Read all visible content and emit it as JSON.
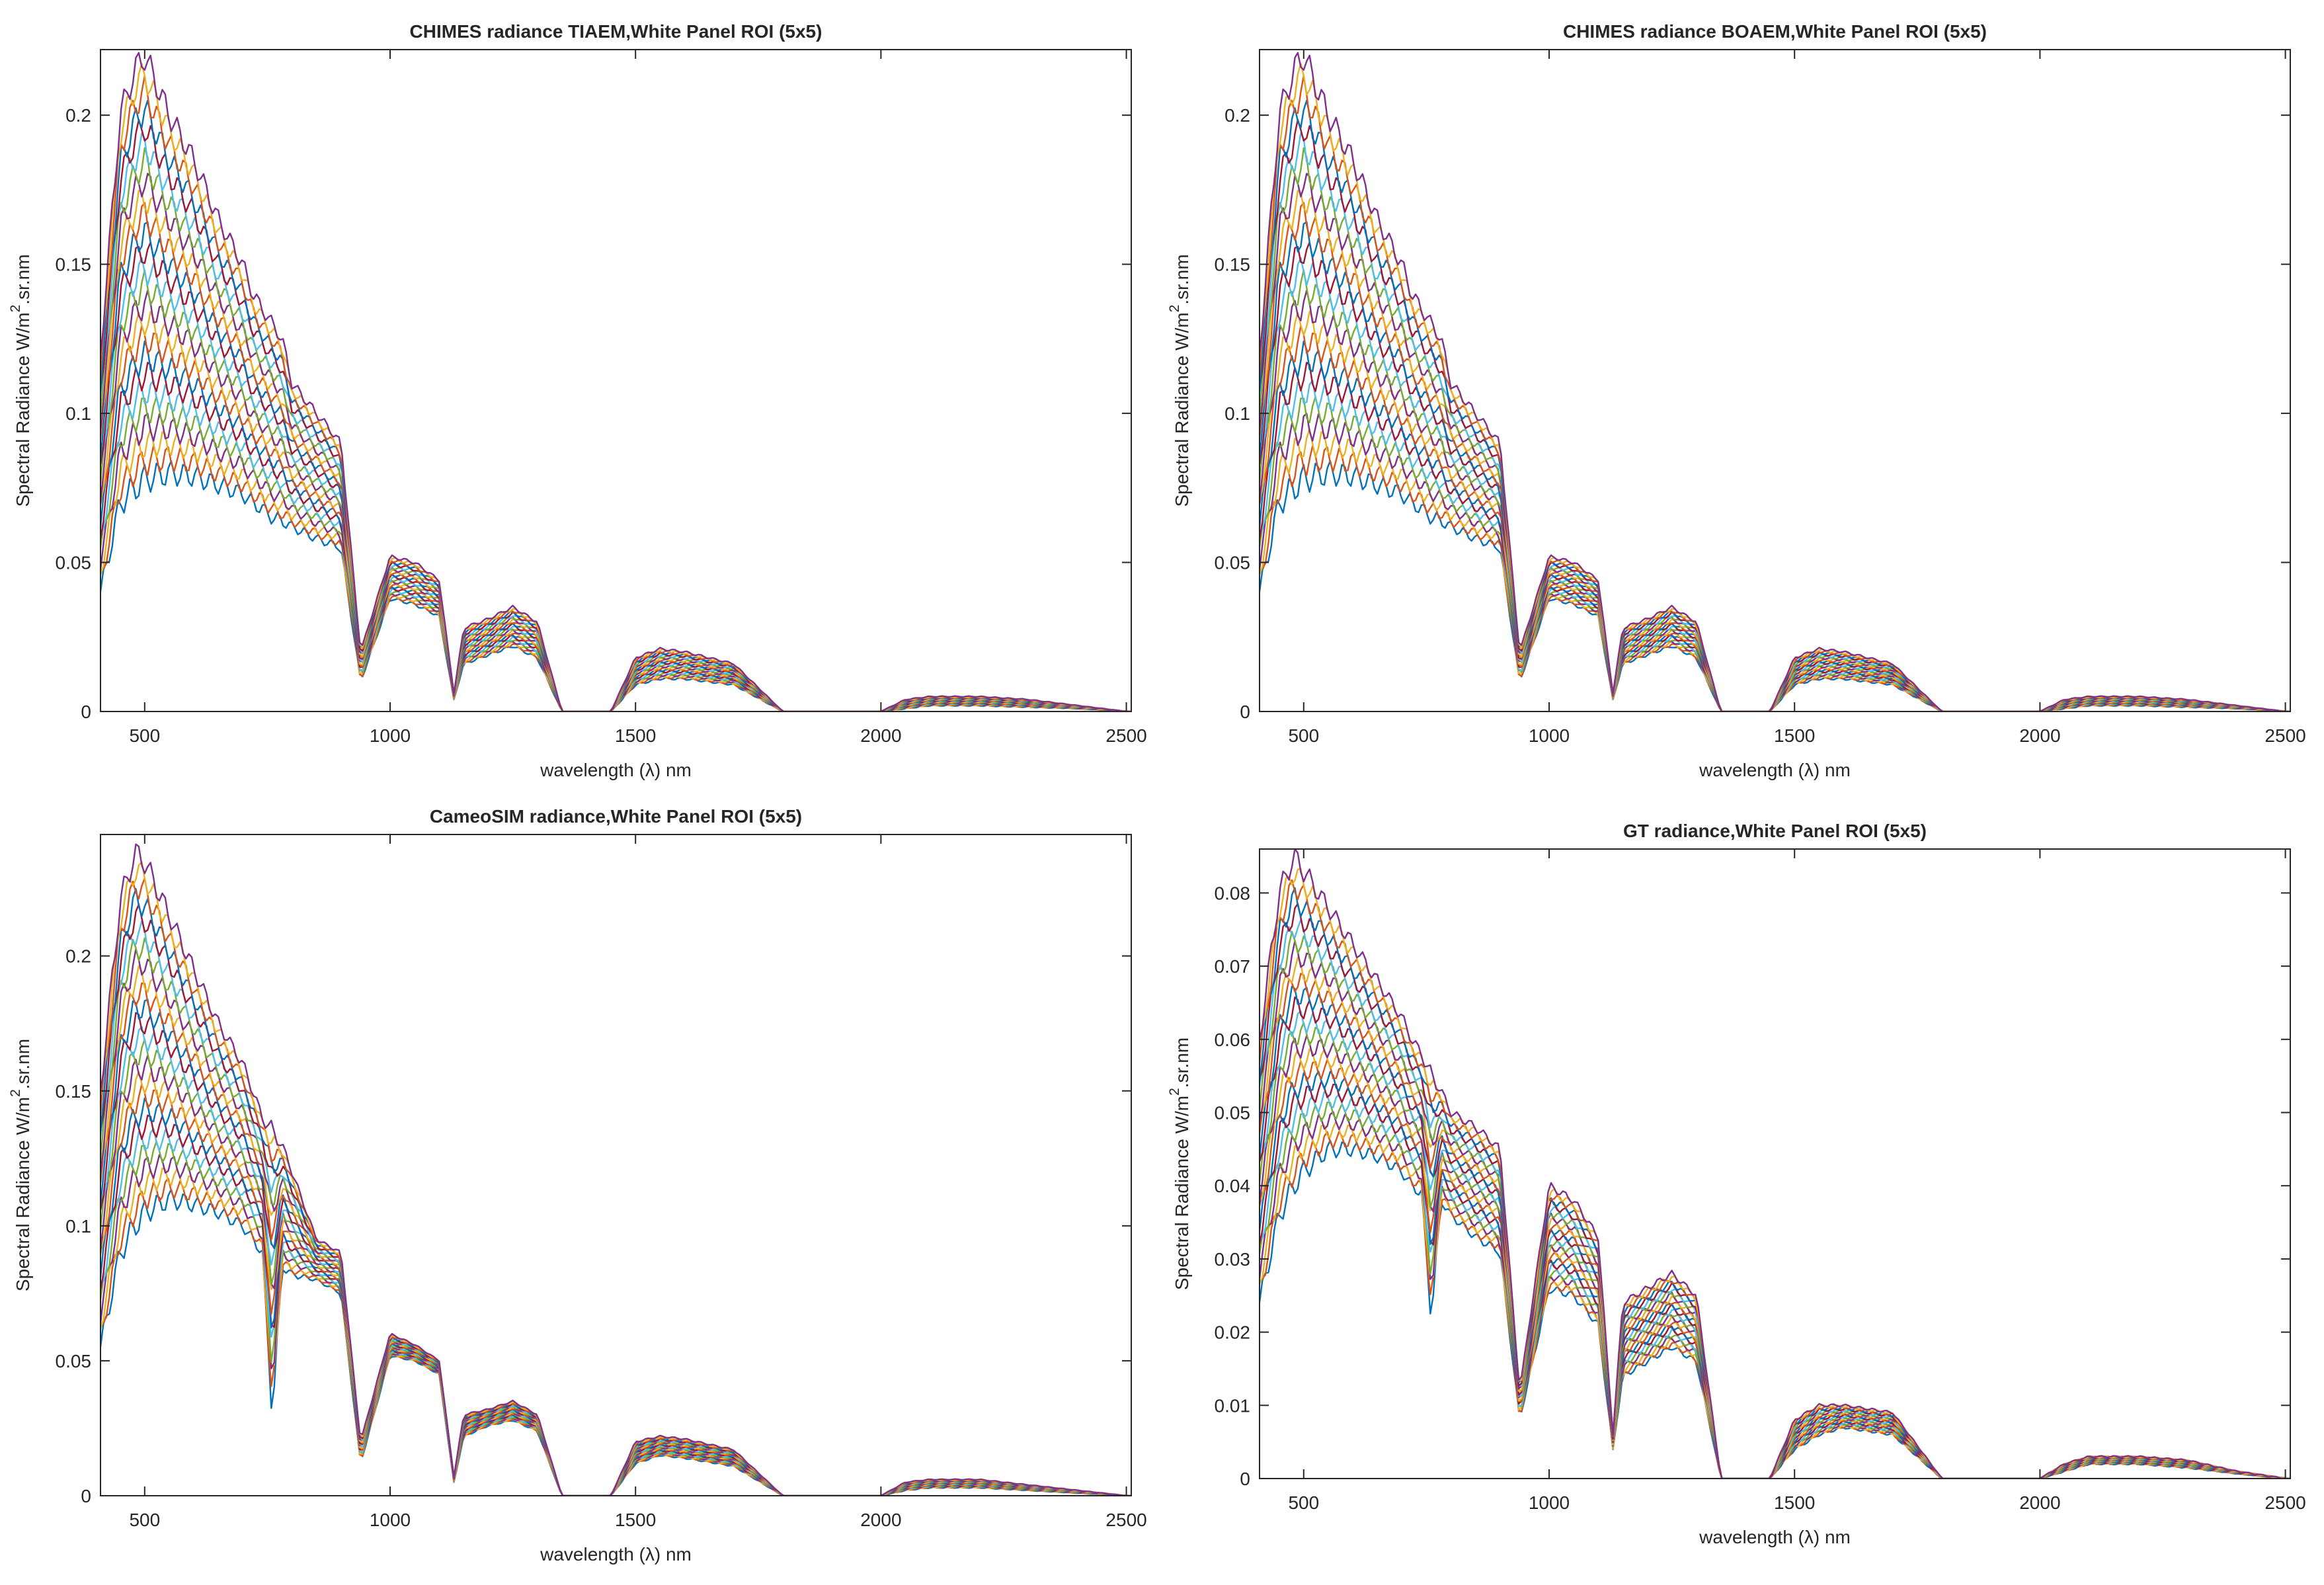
{
  "chart_data": [
    {
      "type": "line",
      "title": "CHIMES radiance TIAEM,White Panel ROI (5x5)",
      "xlabel": "wavelength (λ) nm",
      "ylabel": "Spectral Radiance W/m²·sr·nm",
      "ylabel_parts": {
        "main": "Spectral Radiance W/m",
        "sup": "2",
        "unit": ".sr.nm"
      },
      "xlim": [
        410,
        2510
      ],
      "ylim": [
        0,
        0.222
      ],
      "xticks": [
        500,
        1000,
        1500,
        2000,
        2500
      ],
      "xtick_labels": [
        "500",
        "1000",
        "1500",
        "2000",
        "2500"
      ],
      "yticks": [
        0,
        0.05,
        0.1,
        0.15,
        0.2
      ],
      "ytick_labels": [
        "0",
        "0.05",
        "0.1",
        "0.15",
        "0.2"
      ],
      "grid": false,
      "series_count": 25,
      "x": [
        410,
        450,
        480,
        500,
        550,
        600,
        650,
        700,
        720,
        740,
        760,
        780,
        800,
        850,
        900,
        940,
        1000,
        1050,
        1100,
        1130,
        1150,
        1200,
        1250,
        1300,
        1350,
        1400,
        1450,
        1500,
        1550,
        1600,
        1700,
        1800,
        1900,
        1950,
        2000,
        2050,
        2100,
        2200,
        2300,
        2400,
        2500
      ],
      "series_min": [
        0.04,
        0.07,
        0.075,
        0.078,
        0.08,
        0.079,
        0.076,
        0.073,
        0.07,
        0.068,
        0.065,
        0.064,
        0.062,
        0.058,
        0.055,
        0.01,
        0.038,
        0.036,
        0.032,
        0.004,
        0.016,
        0.019,
        0.022,
        0.018,
        0.0,
        0.0,
        0.0,
        0.009,
        0.011,
        0.011,
        0.009,
        0.0,
        0.0,
        0.0,
        0.0,
        0.001,
        0.002,
        0.002,
        0.0015,
        0.001,
        0.0
      ],
      "series_max": [
        0.12,
        0.2,
        0.215,
        0.22,
        0.2,
        0.185,
        0.165,
        0.15,
        0.14,
        0.135,
        0.13,
        0.125,
        0.11,
        0.1,
        0.09,
        0.02,
        0.052,
        0.05,
        0.044,
        0.006,
        0.028,
        0.031,
        0.035,
        0.03,
        0.0,
        0.0,
        0.0,
        0.018,
        0.021,
        0.02,
        0.016,
        0.0,
        0.0,
        0.0,
        0.0,
        0.004,
        0.005,
        0.005,
        0.004,
        0.002,
        0.0
      ]
    },
    {
      "type": "line",
      "title": "CHIMES radiance BOAEM,White Panel ROI (5x5)",
      "xlabel": "wavelength (λ) nm",
      "ylabel": "Spectral Radiance W/m²·sr·nm",
      "ylabel_parts": {
        "main": "Spectral Radiance W/m",
        "sup": "2",
        "unit": ".sr.nm"
      },
      "xlim": [
        410,
        2510
      ],
      "ylim": [
        0,
        0.222
      ],
      "xticks": [
        500,
        1000,
        1500,
        2000,
        2500
      ],
      "xtick_labels": [
        "500",
        "1000",
        "1500",
        "2000",
        "2500"
      ],
      "yticks": [
        0,
        0.05,
        0.1,
        0.15,
        0.2
      ],
      "ytick_labels": [
        "0",
        "0.05",
        "0.1",
        "0.15",
        "0.2"
      ],
      "grid": false,
      "series_count": 25,
      "x": [
        410,
        450,
        480,
        500,
        550,
        600,
        650,
        700,
        720,
        740,
        760,
        780,
        800,
        850,
        900,
        940,
        1000,
        1050,
        1100,
        1130,
        1150,
        1200,
        1250,
        1300,
        1350,
        1400,
        1450,
        1500,
        1550,
        1600,
        1700,
        1800,
        1900,
        1950,
        2000,
        2050,
        2100,
        2200,
        2300,
        2400,
        2500
      ],
      "series_min": [
        0.04,
        0.07,
        0.075,
        0.078,
        0.08,
        0.079,
        0.076,
        0.073,
        0.07,
        0.068,
        0.065,
        0.064,
        0.062,
        0.058,
        0.055,
        0.01,
        0.038,
        0.036,
        0.032,
        0.004,
        0.016,
        0.019,
        0.022,
        0.018,
        0.0,
        0.0,
        0.0,
        0.009,
        0.011,
        0.011,
        0.009,
        0.0,
        0.0,
        0.0,
        0.0,
        0.001,
        0.002,
        0.002,
        0.0015,
        0.001,
        0.0
      ],
      "series_max": [
        0.12,
        0.2,
        0.215,
        0.22,
        0.2,
        0.185,
        0.165,
        0.15,
        0.14,
        0.135,
        0.13,
        0.125,
        0.11,
        0.1,
        0.09,
        0.02,
        0.052,
        0.05,
        0.044,
        0.006,
        0.028,
        0.031,
        0.035,
        0.03,
        0.0,
        0.0,
        0.0,
        0.018,
        0.021,
        0.02,
        0.016,
        0.0,
        0.0,
        0.0,
        0.0,
        0.004,
        0.005,
        0.005,
        0.004,
        0.002,
        0.0
      ]
    },
    {
      "type": "line",
      "title": "CameoSIM radiance,White Panel ROI (5x5)",
      "xlabel": "wavelength (λ) nm",
      "ylabel": "Spectral Radiance W/m²·sr·nm",
      "ylabel_parts": {
        "main": "Spectral Radiance W/m",
        "sup": "2",
        "unit": ".sr.nm"
      },
      "xlim": [
        410,
        2510
      ],
      "ylim": [
        0,
        0.245
      ],
      "xticks": [
        500,
        1000,
        1500,
        2000,
        2500
      ],
      "xtick_labels": [
        "500",
        "1000",
        "1500",
        "2000",
        "2500"
      ],
      "yticks": [
        0,
        0.05,
        0.1,
        0.15,
        0.2
      ],
      "ytick_labels": [
        "0",
        "0.05",
        "0.1",
        "0.15",
        "0.2"
      ],
      "grid": false,
      "series_count": 25,
      "x": [
        410,
        450,
        480,
        500,
        550,
        600,
        650,
        700,
        720,
        740,
        760,
        780,
        800,
        850,
        900,
        940,
        1000,
        1050,
        1100,
        1130,
        1150,
        1200,
        1250,
        1300,
        1350,
        1400,
        1450,
        1500,
        1550,
        1600,
        1700,
        1800,
        1900,
        1950,
        2000,
        2050,
        2100,
        2200,
        2300,
        2400,
        2500
      ],
      "series_min": [
        0.055,
        0.09,
        0.1,
        0.105,
        0.11,
        0.108,
        0.105,
        0.1,
        0.095,
        0.09,
        0.03,
        0.085,
        0.082,
        0.08,
        0.075,
        0.012,
        0.052,
        0.05,
        0.045,
        0.005,
        0.022,
        0.026,
        0.028,
        0.024,
        0.0,
        0.0,
        0.0,
        0.012,
        0.015,
        0.014,
        0.011,
        0.0,
        0.0,
        0.0,
        0.0,
        0.002,
        0.003,
        0.003,
        0.002,
        0.001,
        0.0
      ],
      "series_max": [
        0.15,
        0.22,
        0.238,
        0.235,
        0.215,
        0.195,
        0.175,
        0.16,
        0.15,
        0.14,
        0.135,
        0.13,
        0.12,
        0.095,
        0.09,
        0.02,
        0.06,
        0.056,
        0.05,
        0.007,
        0.03,
        0.032,
        0.035,
        0.03,
        0.0,
        0.0,
        0.0,
        0.02,
        0.022,
        0.021,
        0.017,
        0.0,
        0.0,
        0.0,
        0.0,
        0.005,
        0.006,
        0.006,
        0.004,
        0.002,
        0.0
      ]
    },
    {
      "type": "line",
      "title": "GT radiance,White Panel ROI (5x5)",
      "xlabel": "wavelength (λ) nm",
      "ylabel": "Spectral Radiance W/m²·sr·nm",
      "ylabel_parts": {
        "main": "Spectral Radiance W/m",
        "sup": "2",
        "unit": ".sr.nm"
      },
      "xlim": [
        410,
        2510
      ],
      "ylim": [
        0,
        0.086
      ],
      "xticks": [
        500,
        1000,
        1500,
        2000,
        2500
      ],
      "xtick_labels": [
        "500",
        "1000",
        "1500",
        "2000",
        "2500"
      ],
      "yticks": [
        0,
        0.01,
        0.02,
        0.03,
        0.04,
        0.05,
        0.06,
        0.07,
        0.08
      ],
      "ytick_labels": [
        "0",
        "0.01",
        "0.02",
        "0.03",
        "0.04",
        "0.05",
        "0.06",
        "0.07",
        "0.08"
      ],
      "grid": false,
      "series_count": 25,
      "x": [
        410,
        450,
        480,
        500,
        550,
        600,
        650,
        700,
        720,
        740,
        760,
        780,
        800,
        850,
        900,
        940,
        1000,
        1050,
        1100,
        1130,
        1150,
        1200,
        1250,
        1300,
        1350,
        1400,
        1450,
        1500,
        1550,
        1600,
        1700,
        1800,
        1900,
        1950,
        2000,
        2050,
        2100,
        2200,
        2300,
        2400,
        2500
      ],
      "series_min": [
        0.024,
        0.036,
        0.04,
        0.042,
        0.045,
        0.045,
        0.044,
        0.042,
        0.04,
        0.039,
        0.022,
        0.038,
        0.036,
        0.033,
        0.031,
        0.008,
        0.026,
        0.025,
        0.021,
        0.004,
        0.014,
        0.016,
        0.018,
        0.016,
        0.0,
        0.0,
        0.0,
        0.004,
        0.006,
        0.007,
        0.006,
        0.0,
        0.0,
        0.0,
        0.0,
        0.001,
        0.002,
        0.002,
        0.0015,
        0.0007,
        0.0
      ],
      "series_max": [
        0.06,
        0.08,
        0.085,
        0.083,
        0.078,
        0.073,
        0.068,
        0.063,
        0.06,
        0.058,
        0.055,
        0.053,
        0.05,
        0.048,
        0.045,
        0.012,
        0.04,
        0.038,
        0.033,
        0.006,
        0.024,
        0.026,
        0.028,
        0.025,
        0.0,
        0.0,
        0.0,
        0.008,
        0.01,
        0.01,
        0.009,
        0.0,
        0.0,
        0.0,
        0.0,
        0.002,
        0.003,
        0.003,
        0.0025,
        0.001,
        0.0
      ]
    }
  ],
  "colors": {
    "axis": "#262626",
    "series": [
      "#0072BD",
      "#D95319",
      "#EDB120",
      "#7E2F8E",
      "#77AC30",
      "#4DBEEE",
      "#A2142F"
    ]
  }
}
